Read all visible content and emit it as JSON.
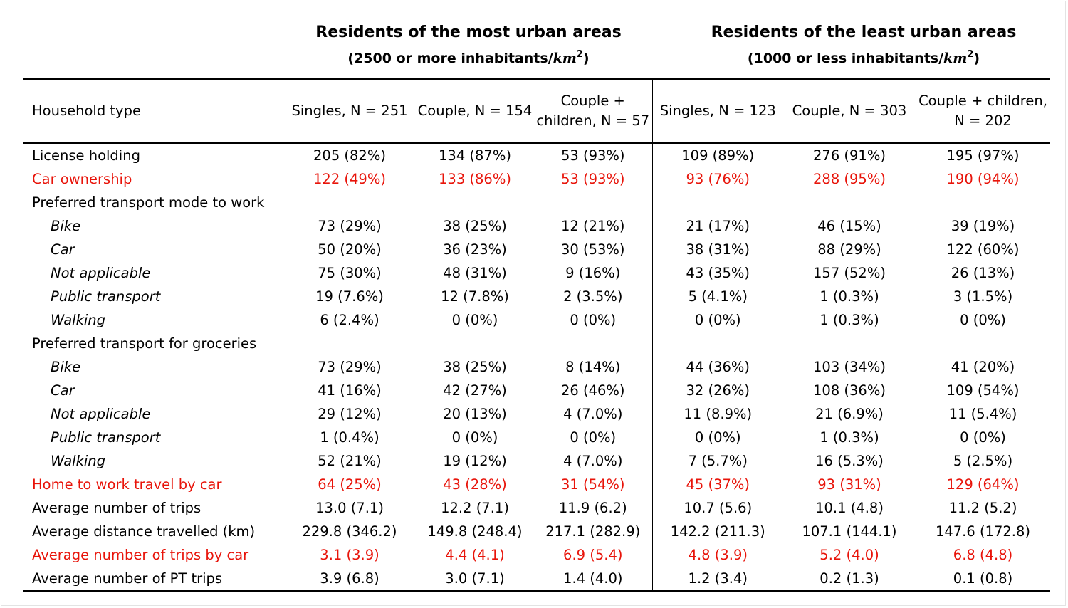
{
  "groups": [
    {
      "title": "Residents of the most urban areas",
      "density_prefix": "(2500 or more inhabitants/",
      "unit": "km",
      "unit_exp": "2",
      "density_suffix": ")"
    },
    {
      "title": "Residents of the least urban areas",
      "density_prefix": "(1000 or less inhabitants/",
      "unit": "km",
      "unit_exp": "2",
      "density_suffix": ")"
    }
  ],
  "columns": {
    "label_header": "Household type",
    "headers": [
      "Singles, N = 251",
      "Couple, N = 154",
      "Couple + children, N = 57",
      "Singles, N = 123",
      "Couple, N = 303",
      "Couple + children, N = 202"
    ]
  },
  "rows": [
    {
      "label": "License holding",
      "values": [
        "205 (82%)",
        "134 (87%)",
        "53 (93%)",
        "109 (89%)",
        "276 (91%)",
        "195 (97%)"
      ]
    },
    {
      "label": "Car ownership",
      "values": [
        "122 (49%)",
        "133 (86%)",
        "53 (93%)",
        "93 (76%)",
        "288 (95%)",
        "190 (94%)"
      ]
    },
    {
      "label": "Preferred transport mode to work",
      "values": [
        "",
        "",
        "",
        "",
        "",
        ""
      ]
    },
    {
      "label": "Bike",
      "values": [
        "73 (29%)",
        "38 (25%)",
        "12 (21%)",
        "21 (17%)",
        "46 (15%)",
        "39 (19%)"
      ]
    },
    {
      "label": "Car",
      "values": [
        "50 (20%)",
        "36 (23%)",
        "30 (53%)",
        "38 (31%)",
        "88 (29%)",
        "122 (60%)"
      ]
    },
    {
      "label": "Not applicable",
      "values": [
        "75 (30%)",
        "48 (31%)",
        "9 (16%)",
        "43 (35%)",
        "157 (52%)",
        "26 (13%)"
      ]
    },
    {
      "label": "Public transport",
      "values": [
        "19 (7.6%)",
        "12 (7.8%)",
        "2 (3.5%)",
        "5 (4.1%)",
        "1 (0.3%)",
        "3 (1.5%)"
      ]
    },
    {
      "label": "Walking",
      "values": [
        "6 (2.4%)",
        "0 (0%)",
        "0 (0%)",
        "0 (0%)",
        "1 (0.3%)",
        "0 (0%)"
      ]
    },
    {
      "label": "Preferred transport for groceries",
      "values": [
        "",
        "",
        "",
        "",
        "",
        ""
      ]
    },
    {
      "label": "Bike",
      "values": [
        "73 (29%)",
        "38 (25%)",
        "8 (14%)",
        "44 (36%)",
        "103 (34%)",
        "41 (20%)"
      ]
    },
    {
      "label": "Car",
      "values": [
        "41 (16%)",
        "42 (27%)",
        "26 (46%)",
        "32 (26%)",
        "108 (36%)",
        "109 (54%)"
      ]
    },
    {
      "label": "Not applicable",
      "values": [
        "29 (12%)",
        "20 (13%)",
        "4 (7.0%)",
        "11 (8.9%)",
        "21 (6.9%)",
        "11 (5.4%)"
      ]
    },
    {
      "label": "Public transport",
      "values": [
        "1 (0.4%)",
        "0 (0%)",
        "0 (0%)",
        "0 (0%)",
        "1 (0.3%)",
        "0 (0%)"
      ]
    },
    {
      "label": "Walking",
      "values": [
        "52 (21%)",
        "19 (12%)",
        "4 (7.0%)",
        "7 (5.7%)",
        "16 (5.3%)",
        "5 (2.5%)"
      ]
    },
    {
      "label": "Home to work travel by car",
      "values": [
        "64 (25%)",
        "43 (28%)",
        "31 (54%)",
        "45 (37%)",
        "93 (31%)",
        "129 (64%)"
      ]
    },
    {
      "label": "Average number of trips",
      "values": [
        "13.0 (7.1)",
        "12.2 (7.1)",
        "11.9 (6.2)",
        "10.7 (5.6)",
        "10.1 (4.8)",
        "11.2 (5.2)"
      ]
    },
    {
      "label": "Average distance travelled (km)",
      "values": [
        "229.8 (346.2)",
        "149.8 (248.4)",
        "217.1 (282.9)",
        "142.2 (211.3)",
        "107.1 (144.1)",
        "147.6 (172.8)"
      ]
    },
    {
      "label": "Average number of trips by car",
      "values": [
        "3.1 (3.9)",
        "4.4 (4.1)",
        "6.9 (5.4)",
        "4.8 (3.9)",
        "5.2 (4.0)",
        "6.8 (4.8)"
      ]
    },
    {
      "label": "Average number of PT trips",
      "values": [
        "3.9 (6.8)",
        "3.0 (7.1)",
        "1.4 (4.0)",
        "1.2 (3.4)",
        "0.2 (1.3)",
        "0.1 (0.8)"
      ]
    }
  ],
  "highlight_color": "#e8140a"
}
